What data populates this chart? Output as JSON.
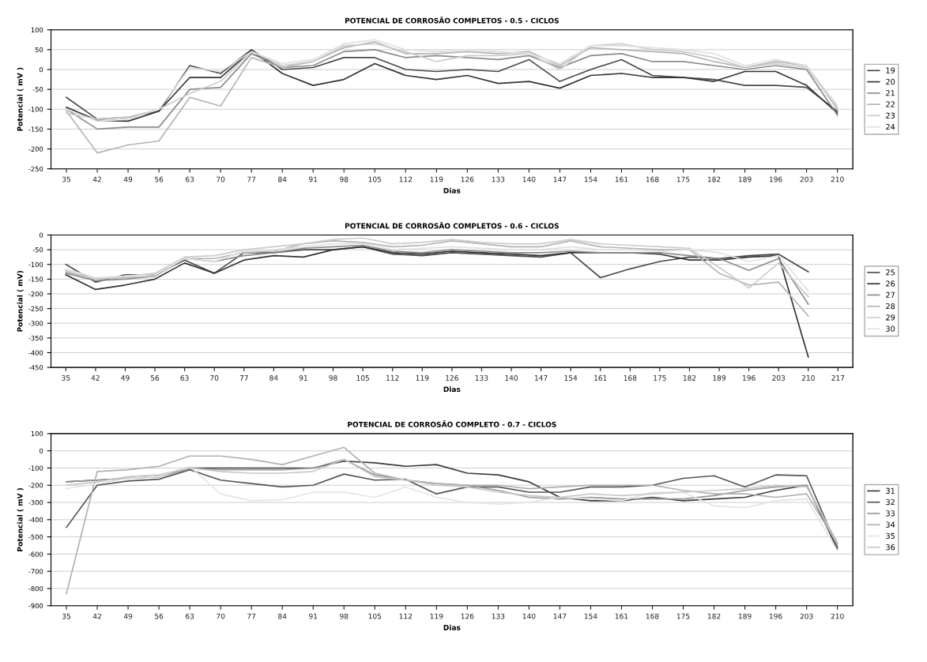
{
  "chart_data": [
    {
      "type": "line",
      "title": "POTENCIAL DE CORROSÃO COMPLETOS - 0.5 - CICLOS",
      "xlabel": "Dias",
      "ylabel": "Potencial ( mV )",
      "grid": "y",
      "legend": "right",
      "ylim": [
        -250,
        100
      ],
      "yticks": [
        -250,
        -200,
        -150,
        -100,
        -50,
        0,
        50,
        100
      ],
      "categories": [
        "35",
        "42",
        "49",
        "56",
        "63",
        "70",
        "77",
        "84",
        "91",
        "98",
        "105",
        "112",
        "119",
        "126",
        "133",
        "140",
        "147",
        "154",
        "161",
        "168",
        "175",
        "182",
        "189",
        "196",
        "203",
        "210"
      ],
      "series": [
        {
          "name": "19",
          "color": "#4a4a4a",
          "values": [
            -70,
            -125,
            -120,
            -105,
            10,
            -10,
            50,
            0,
            5,
            30,
            30,
            0,
            -5,
            0,
            -5,
            25,
            -30,
            0,
            25,
            -15,
            -20,
            -25,
            -40,
            -40,
            -45,
            -105
          ]
        },
        {
          "name": "20",
          "color": "#333333",
          "values": [
            -95,
            -128,
            -130,
            -105,
            -20,
            -20,
            48,
            -10,
            -40,
            -25,
            15,
            -15,
            -25,
            -15,
            -35,
            -30,
            -47,
            -15,
            -10,
            -20,
            -20,
            -30,
            -5,
            -5,
            -40,
            -110
          ]
        },
        {
          "name": "21",
          "color": "#8c8c8c",
          "values": [
            -100,
            -150,
            -145,
            -145,
            -50,
            -45,
            40,
            5,
            10,
            45,
            50,
            30,
            35,
            30,
            25,
            35,
            5,
            35,
            40,
            20,
            20,
            10,
            0,
            10,
            0,
            -115
          ]
        },
        {
          "name": "22",
          "color": "#b4b4b4",
          "values": [
            -105,
            -210,
            -190,
            -180,
            -70,
            -92,
            30,
            5,
            20,
            55,
            70,
            40,
            40,
            45,
            40,
            45,
            10,
            55,
            50,
            45,
            40,
            20,
            5,
            20,
            10,
            -100
          ]
        },
        {
          "name": "23",
          "color": "#cccccc",
          "values": [
            -110,
            -125,
            -120,
            -100,
            -60,
            -30,
            45,
            10,
            20,
            60,
            65,
            45,
            20,
            35,
            35,
            40,
            0,
            60,
            65,
            50,
            45,
            30,
            5,
            15,
            5,
            -95
          ]
        },
        {
          "name": "24",
          "color": "#e0e0e0",
          "values": [
            -100,
            -130,
            -125,
            -100,
            5,
            -5,
            45,
            15,
            25,
            65,
            75,
            50,
            45,
            50,
            45,
            40,
            15,
            60,
            60,
            55,
            50,
            40,
            10,
            25,
            10,
            -90
          ]
        }
      ]
    },
    {
      "type": "line",
      "title": "POTENCIAL DE CORROSÃO COMPLETOS - 0.6 - CICLOS",
      "xlabel": "Dias",
      "ylabel": "Potencial ( mV)",
      "grid": "y",
      "legend": "right",
      "ylim": [
        -450,
        0
      ],
      "yticks": [
        -450,
        -400,
        -350,
        -300,
        -250,
        -200,
        -150,
        -100,
        -50,
        0
      ],
      "categories": [
        "35",
        "42",
        "49",
        "56",
        "63",
        "70",
        "77",
        "84",
        "91",
        "98",
        "105",
        "112",
        "119",
        "126",
        "133",
        "140",
        "147",
        "154",
        "161",
        "168",
        "175",
        "182",
        "189",
        "196",
        "203",
        "210",
        "217"
      ],
      "series": [
        {
          "name": "25",
          "color": "#4a4a4a",
          "values": [
            -100,
            -160,
            -135,
            -135,
            -85,
            -130,
            -60,
            -60,
            -50,
            -50,
            -40,
            -65,
            -70,
            -60,
            -65,
            -70,
            -75,
            -60,
            -145,
            -115,
            -90,
            -75,
            -80,
            -70,
            -65,
            -125,
            null
          ]
        },
        {
          "name": "26",
          "color": "#333333",
          "values": [
            -135,
            -185,
            -170,
            -150,
            -95,
            -130,
            -85,
            -70,
            -75,
            -50,
            -40,
            -60,
            -65,
            -55,
            -60,
            -65,
            -70,
            -60,
            -60,
            -60,
            -65,
            -85,
            -85,
            -75,
            -70,
            -415,
            null
          ]
        },
        {
          "name": "27",
          "color": "#8c8c8c",
          "values": [
            -130,
            -155,
            -150,
            -140,
            -80,
            -90,
            -70,
            -60,
            -45,
            -40,
            -35,
            -55,
            -60,
            -50,
            -55,
            -60,
            -60,
            -55,
            -60,
            -60,
            -60,
            -70,
            -80,
            -120,
            -80,
            -235,
            null
          ]
        },
        {
          "name": "28",
          "color": "#b4b4b4",
          "values": [
            -125,
            -150,
            -145,
            -140,
            -80,
            -80,
            -60,
            -55,
            -30,
            -20,
            -25,
            -40,
            -35,
            -20,
            -30,
            -40,
            -40,
            -20,
            -40,
            -45,
            -50,
            -50,
            -130,
            -170,
            -160,
            -275,
            null
          ]
        },
        {
          "name": "29",
          "color": "#cccccc",
          "values": [
            -120,
            -150,
            -140,
            -130,
            -75,
            -70,
            -50,
            -40,
            -30,
            -15,
            -10,
            -30,
            -25,
            -15,
            -25,
            -30,
            -30,
            -15,
            -30,
            -35,
            -40,
            -45,
            -110,
            -180,
            -95,
            -210,
            null
          ]
        },
        {
          "name": "30",
          "color": "#e0e0e0",
          "values": [
            -115,
            -145,
            -140,
            -135,
            -80,
            -90,
            -55,
            -50,
            -40,
            -30,
            -30,
            -50,
            -45,
            -40,
            -45,
            -50,
            -50,
            -40,
            -50,
            -50,
            -55,
            -50,
            -60,
            -90,
            -70,
            -190,
            null
          ]
        }
      ]
    },
    {
      "type": "line",
      "title": "POTENCIAL DE CORROSÃO COMPLETO - 0.7 - CICLOS",
      "xlabel": "Dias",
      "ylabel": "Potencial ( mV )",
      "grid": "y",
      "legend": "right",
      "ylim": [
        -900,
        100
      ],
      "yticks": [
        -900,
        -800,
        -700,
        -600,
        -500,
        -400,
        -300,
        -200,
        -100,
        0,
        100
      ],
      "categories": [
        "35",
        "42",
        "49",
        "56",
        "63",
        "70",
        "77",
        "84",
        "91",
        "98",
        "105",
        "112",
        "119",
        "126",
        "133",
        "140",
        "147",
        "154",
        "161",
        "168",
        "175",
        "182",
        "189",
        "196",
        "203",
        "210"
      ],
      "series": [
        {
          "name": "31",
          "color": "#3c3c3c",
          "values": [
            -180,
            -170,
            -160,
            -150,
            -100,
            -100,
            -100,
            -100,
            -100,
            -60,
            -70,
            -90,
            -80,
            -130,
            -140,
            -180,
            -270,
            -290,
            -290,
            -270,
            -290,
            -280,
            -270,
            -230,
            -200,
            -570
          ]
        },
        {
          "name": "32",
          "color": "#555555",
          "values": [
            -445,
            -200,
            -175,
            -165,
            -110,
            -170,
            -190,
            -210,
            -200,
            -135,
            -170,
            -165,
            -250,
            -210,
            -210,
            -240,
            -240,
            -210,
            -210,
            -200,
            -160,
            -145,
            -210,
            -140,
            -145,
            -560
          ]
        },
        {
          "name": "33",
          "color": "#999999",
          "values": [
            -180,
            -170,
            -160,
            -150,
            -100,
            -110,
            -110,
            -110,
            -100,
            -50,
            -140,
            -170,
            -190,
            -200,
            -230,
            -270,
            -280,
            -270,
            -280,
            -280,
            -280,
            -260,
            -230,
            -210,
            -200,
            -550
          ]
        },
        {
          "name": "34",
          "color": "#b0b0b0",
          "values": [
            -830,
            -120,
            -110,
            -90,
            -30,
            -30,
            -50,
            -80,
            -30,
            20,
            -130,
            -170,
            -190,
            -200,
            -200,
            -220,
            -210,
            -200,
            -200,
            -200,
            -230,
            -250,
            -250,
            -270,
            -250,
            -540
          ]
        },
        {
          "name": "35",
          "color": "#e4e4e4",
          "values": [
            -220,
            -190,
            -160,
            -150,
            -90,
            -250,
            -290,
            -285,
            -240,
            -240,
            -270,
            -210,
            -270,
            -300,
            -310,
            -300,
            -270,
            -280,
            -290,
            -240,
            -240,
            -320,
            -330,
            -290,
            -280,
            -580
          ]
        },
        {
          "name": "36",
          "color": "#c8c8c8",
          "values": [
            -200,
            -180,
            -150,
            -140,
            -100,
            -120,
            -130,
            -130,
            -120,
            -50,
            -150,
            -170,
            -200,
            -210,
            -240,
            -260,
            -270,
            -250,
            -260,
            -250,
            -240,
            -230,
            -220,
            -200,
            -210,
            -530
          ]
        }
      ]
    }
  ]
}
